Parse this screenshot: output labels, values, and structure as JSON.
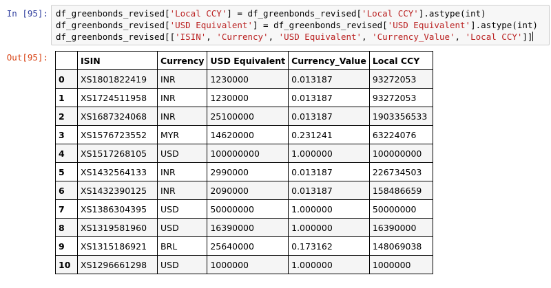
{
  "cell": {
    "in_prompt": "In [95]:",
    "out_prompt": "Out[95]:",
    "code": [
      [
        {
          "t": "df_greenbonds_revised[",
          "s": ""
        },
        {
          "t": "'Local CCY'",
          "s": "str"
        },
        {
          "t": "] = df_greenbonds_revised[",
          "s": ""
        },
        {
          "t": "'Local CCY'",
          "s": "str"
        },
        {
          "t": "].astype(int)",
          "s": ""
        }
      ],
      [
        {
          "t": "df_greenbonds_revised[",
          "s": ""
        },
        {
          "t": "'USD Equivalent'",
          "s": "str"
        },
        {
          "t": "] = df_greenbonds_revised[",
          "s": ""
        },
        {
          "t": "'USD Equivalent'",
          "s": "str"
        },
        {
          "t": "].astype(int)",
          "s": ""
        }
      ],
      [
        {
          "t": "df_greenbonds_revised[[",
          "s": ""
        },
        {
          "t": "'ISIN'",
          "s": "str"
        },
        {
          "t": ", ",
          "s": ""
        },
        {
          "t": "'Currency'",
          "s": "str"
        },
        {
          "t": ", ",
          "s": ""
        },
        {
          "t": "'USD Equivalent'",
          "s": "str"
        },
        {
          "t": ", ",
          "s": ""
        },
        {
          "t": "'Currency_Value'",
          "s": "str"
        },
        {
          "t": ", ",
          "s": ""
        },
        {
          "t": "'Local CCY'",
          "s": "str"
        },
        {
          "t": "]]",
          "s": ""
        }
      ]
    ]
  },
  "table": {
    "columns": [
      "",
      "ISIN",
      "Currency",
      "USD Equivalent",
      "Currency_Value",
      "Local CCY"
    ],
    "rows": [
      [
        "0",
        "XS1801822419",
        "INR",
        "1230000",
        "0.013187",
        "93272053"
      ],
      [
        "1",
        "XS1724511958",
        "INR",
        "1230000",
        "0.013187",
        "93272053"
      ],
      [
        "2",
        "XS1687324068",
        "INR",
        "25100000",
        "0.013187",
        "1903356533"
      ],
      [
        "3",
        "XS1576723552",
        "MYR",
        "14620000",
        "0.231241",
        "63224076"
      ],
      [
        "4",
        "XS1517268105",
        "USD",
        "100000000",
        "1.000000",
        "100000000"
      ],
      [
        "5",
        "XS1432564133",
        "INR",
        "2990000",
        "0.013187",
        "226734503"
      ],
      [
        "6",
        "XS1432390125",
        "INR",
        "2090000",
        "0.013187",
        "158486659"
      ],
      [
        "7",
        "XS1386304395",
        "USD",
        "50000000",
        "1.000000",
        "50000000"
      ],
      [
        "8",
        "XS1319581960",
        "USD",
        "16390000",
        "1.000000",
        "16390000"
      ],
      [
        "9",
        "XS1315186921",
        "BRL",
        "25640000",
        "0.173162",
        "148069038"
      ],
      [
        "10",
        "XS1296661298",
        "USD",
        "1000000",
        "1.000000",
        "1000000"
      ]
    ]
  }
}
